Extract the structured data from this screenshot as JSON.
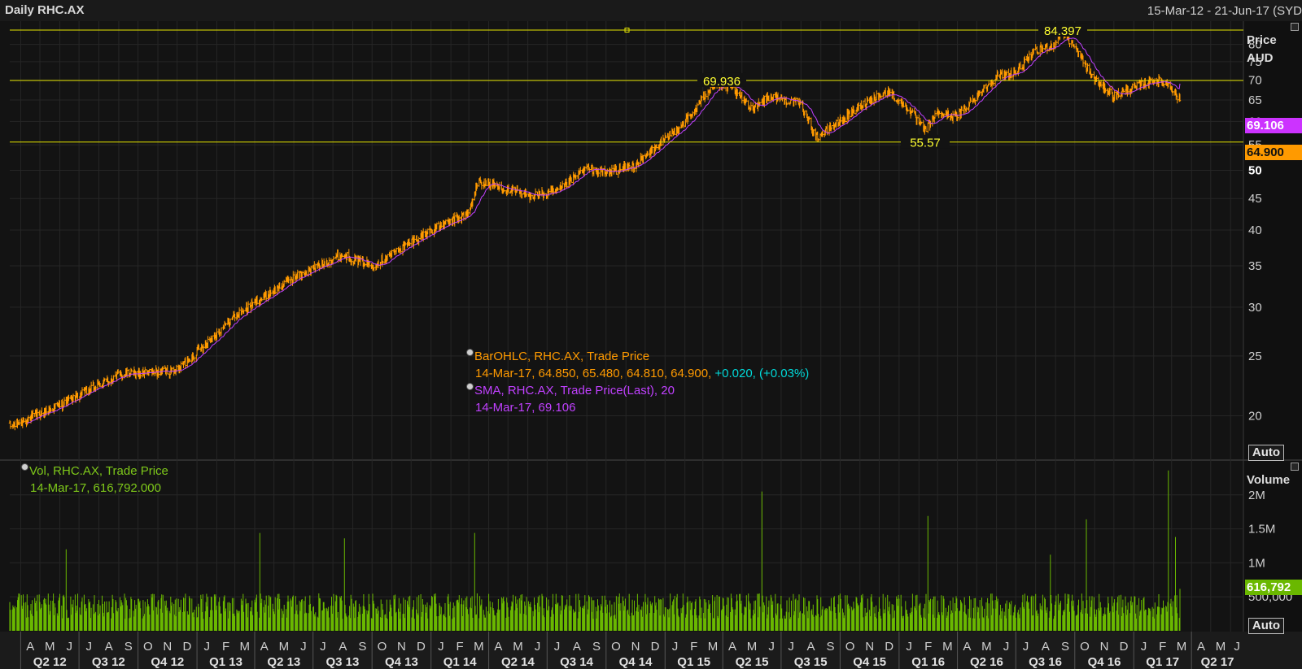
{
  "header": {
    "title": "Daily RHC.AX",
    "date_range": "15-Mar-12 - 21-Jun-17 (SYD"
  },
  "price_panel": {
    "axis_label_line1": "Price",
    "axis_label_line2": "AUD",
    "auto_button": "Auto",
    "sma_tag": "69.106",
    "last_price_tag": "64.900",
    "hlines": [
      {
        "value": 84.397,
        "label": "84.397"
      },
      {
        "value": 69.936,
        "label": "69.936"
      },
      {
        "value": 55.57,
        "label": "55.57"
      }
    ],
    "legend": {
      "bar_title": "BarOHLC, RHC.AX, Trade Price",
      "bar_values": "14-Mar-17, 64.850, 65.480, 64.810, 64.900,",
      "bar_change": "+0.020, (+0.03%)",
      "sma_title": "SMA, RHC.AX, Trade Price(Last),  20",
      "sma_values": "14-Mar-17, 69.106"
    },
    "colors": {
      "ohlc": "#ff9a00",
      "sma": "#c040ff",
      "hline": "#e6e600",
      "change": "#00d8d8"
    }
  },
  "volume_panel": {
    "axis_label": "Volume",
    "auto_button": "Auto",
    "last_volume_tag": "616,792",
    "legend": {
      "title": "Vol, RHC.AX, Trade Price",
      "values": "14-Mar-17, 616,792.000"
    },
    "color": "#6ab800"
  },
  "chart_data": [
    {
      "type": "ohlc",
      "title": "Daily RHC.AX",
      "ylabel": "Price AUD",
      "ylim": [
        17,
        87
      ],
      "log_scale": true,
      "x_range": [
        "2012-03-15",
        "2017-06-21"
      ],
      "grid": true,
      "y_ticks": [
        "20",
        "25",
        "30",
        "35",
        "40",
        "45",
        "50",
        "55",
        "60",
        "65",
        "70",
        "75",
        "80"
      ],
      "x": [
        "2012-03-15",
        "2012-06-01",
        "2012-09-01",
        "2012-12-01",
        "2013-03-01",
        "2013-06-01",
        "2013-08-15",
        "2013-10-01",
        "2014-01-01",
        "2014-03-01",
        "2014-03-15",
        "2014-06-01",
        "2014-07-15",
        "2014-09-01",
        "2014-10-01",
        "2014-11-15",
        "2015-01-01",
        "2015-02-15",
        "2015-03-15",
        "2015-04-15",
        "2015-05-15",
        "2015-06-15",
        "2015-08-01",
        "2015-08-25",
        "2015-10-01",
        "2015-11-15",
        "2015-12-15",
        "2016-01-15",
        "2016-02-10",
        "2016-03-01",
        "2016-04-01",
        "2016-05-01",
        "2016-06-01",
        "2016-07-01",
        "2016-08-01",
        "2016-09-01",
        "2016-09-10",
        "2016-10-01",
        "2016-11-01",
        "2016-12-01",
        "2017-01-01",
        "2017-02-01",
        "2017-02-25",
        "2017-03-14"
      ],
      "close": [
        19.2,
        20.8,
        23.3,
        23.7,
        29,
        33.5,
        36.5,
        35,
        40,
        42.5,
        48,
        45.5,
        46,
        50.5,
        49.5,
        51,
        56,
        62,
        69,
        68,
        63,
        66,
        64,
        56.5,
        60,
        65,
        67,
        63,
        58,
        62,
        61,
        66,
        71,
        72,
        78,
        80,
        84.4,
        79,
        70,
        66,
        68,
        70,
        69,
        64.9
      ],
      "series": [
        {
          "name": "SMA, RHC.AX, Trade Price(Last), 20",
          "last_value": 69.106
        }
      ],
      "reference_lines": [
        84.397,
        69.936,
        55.57
      ],
      "last": {
        "date": "14-Mar-17",
        "open": 64.85,
        "high": 65.48,
        "low": 64.81,
        "close": 64.9,
        "change": 0.02,
        "change_pct": 0.03
      }
    },
    {
      "type": "bar",
      "title": "Vol, RHC.AX, Trade Price",
      "ylabel": "Volume",
      "ylim": [
        0,
        2500000
      ],
      "y_ticks": [
        "500,000",
        "1M",
        "1.5M",
        "2M"
      ],
      "typical_volume": 500000,
      "spikes": [
        {
          "date": "2012-06-10",
          "value": 1200000
        },
        {
          "date": "2013-04-10",
          "value": 1440000
        },
        {
          "date": "2013-08-20",
          "value": 1360000
        },
        {
          "date": "2014-03-10",
          "value": 1440000
        },
        {
          "date": "2015-06-01",
          "value": 2050000
        },
        {
          "date": "2016-02-15",
          "value": 1690000
        },
        {
          "date": "2016-08-25",
          "value": 1120000
        },
        {
          "date": "2016-10-20",
          "value": 1640000
        },
        {
          "date": "2017-02-25",
          "value": 2360000
        },
        {
          "date": "2017-03-08",
          "value": 1380000
        }
      ],
      "last": {
        "date": "14-Mar-17",
        "value": 616792
      }
    }
  ],
  "time_axis": {
    "months": [
      "A",
      "M",
      "J",
      "J",
      "A",
      "S",
      "O",
      "N",
      "D",
      "J",
      "F",
      "M",
      "A",
      "M",
      "J",
      "J",
      "A",
      "S",
      "O",
      "N",
      "D",
      "J",
      "F",
      "M",
      "A",
      "M",
      "J",
      "J",
      "A",
      "S",
      "O",
      "N",
      "D",
      "J",
      "F",
      "M",
      "A",
      "M",
      "J",
      "J",
      "A",
      "S",
      "O",
      "N",
      "D",
      "J",
      "F",
      "M",
      "A",
      "M",
      "J",
      "J",
      "A",
      "S",
      "O",
      "N",
      "D",
      "J",
      "F",
      "M",
      "A",
      "M",
      "J"
    ],
    "quarters": [
      "Q2 12",
      "Q3 12",
      "Q4 12",
      "Q1 13",
      "Q2 13",
      "Q3 13",
      "Q4 13",
      "Q1 14",
      "Q2 14",
      "Q3 14",
      "Q4 14",
      "Q1 15",
      "Q2 15",
      "Q3 15",
      "Q4 15",
      "Q1 16",
      "Q2 16",
      "Q3 16",
      "Q4 16",
      "Q1 17",
      "Q2 17"
    ]
  }
}
